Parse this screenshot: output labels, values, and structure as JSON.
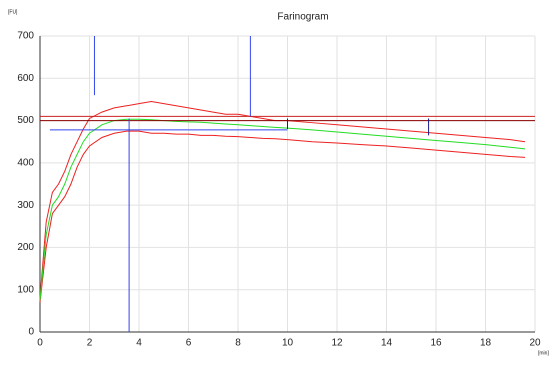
{
  "chart_data": {
    "type": "line",
    "title": "Farinogram",
    "y_label": "[FU]",
    "x_label": "[min]",
    "x": [
      0,
      0.25,
      0.5,
      0.75,
      1,
      1.25,
      1.5,
      1.75,
      2,
      2.5,
      3,
      3.5,
      4,
      4.5,
      5,
      5.5,
      6,
      6.5,
      7,
      7.5,
      8,
      8.5,
      9,
      9.5,
      10,
      11,
      12,
      13,
      14,
      15,
      16,
      17,
      18,
      19,
      19.6
    ],
    "series": [
      {
        "color": "#ee2020",
        "values": [
          80,
          260,
          330,
          350,
          380,
          420,
          450,
          480,
          505,
          520,
          530,
          535,
          540,
          545,
          540,
          535,
          530,
          525,
          520,
          515,
          515,
          510,
          505,
          500,
          500,
          495,
          490,
          485,
          480,
          475,
          470,
          465,
          460,
          455,
          450
        ]
      },
      {
        "color": "#ee2020",
        "values": [
          70,
          200,
          280,
          300,
          320,
          350,
          390,
          420,
          440,
          460,
          470,
          475,
          475,
          470,
          470,
          468,
          468,
          465,
          465,
          463,
          462,
          460,
          458,
          457,
          455,
          450,
          447,
          443,
          440,
          435,
          430,
          425,
          420,
          415,
          413
        ]
      },
      {
        "color": "#22dd22",
        "values": [
          75,
          230,
          300,
          320,
          350,
          390,
          420,
          450,
          470,
          490,
          500,
          503,
          503,
          502,
          500,
          498,
          497,
          496,
          494,
          492,
          490,
          488,
          486,
          484,
          482,
          478,
          473,
          468,
          463,
          458,
          453,
          448,
          443,
          437,
          433
        ]
      }
    ],
    "markers": [
      {
        "color": "#8b0000",
        "x1": 0,
        "y1": 500,
        "x2": 20,
        "y2": 500
      },
      {
        "color": "#cc2222",
        "x1": 0,
        "y1": 510,
        "x2": 20,
        "y2": 510
      },
      {
        "color": "#3344ee",
        "x1": 2.2,
        "y1": 560,
        "x2": 2.2,
        "y2": 700
      },
      {
        "color": "#3344ee",
        "x1": 3.6,
        "y1": 0,
        "x2": 3.6,
        "y2": 505
      },
      {
        "color": "#3344ee",
        "x1": 8.5,
        "y1": 510,
        "x2": 8.5,
        "y2": 700
      },
      {
        "color": "#3344ee",
        "x1": 0.4,
        "y1": 478,
        "x2": 10,
        "y2": 478
      },
      {
        "color": "#1a1a8a",
        "x1": 10,
        "y1": 480,
        "x2": 10,
        "y2": 505
      },
      {
        "color": "#1a1a8a",
        "x1": 15.7,
        "y1": 465,
        "x2": 15.7,
        "y2": 505
      }
    ],
    "xlim": [
      0,
      20
    ],
    "ylim": [
      0,
      700
    ],
    "xticks": [
      0,
      2,
      4,
      6,
      8,
      10,
      12,
      14,
      16,
      18,
      20
    ],
    "yticks": [
      0,
      100,
      200,
      300,
      400,
      500,
      600,
      700
    ],
    "grid": true
  }
}
